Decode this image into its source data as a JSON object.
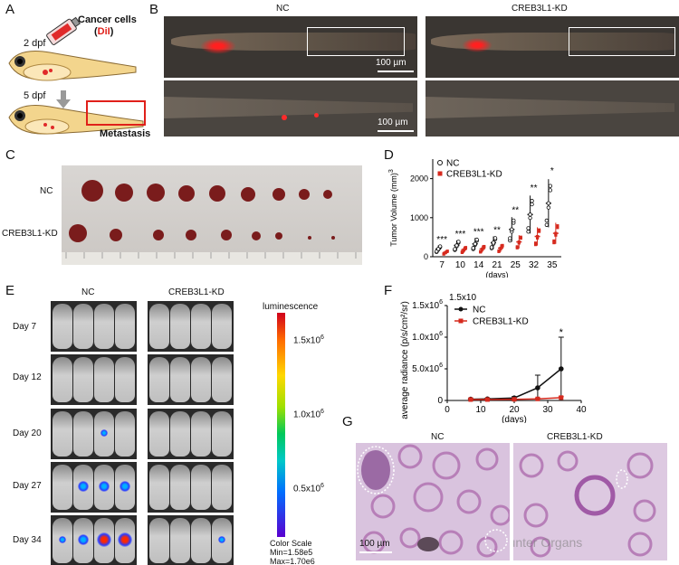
{
  "panels": {
    "A": "A",
    "B": "B",
    "C": "C",
    "D": "D",
    "E": "E",
    "F": "F",
    "G": "G"
  },
  "panel_a": {
    "cancer_cells": "Cancer cells",
    "dil_open": "(",
    "dil": "DiI",
    "dil_close": ")",
    "dpf2": "2 dpf",
    "dpf5": "5 dpf",
    "metastasis": "Metastasis"
  },
  "panel_b": {
    "nc": "NC",
    "kd": "CREB3L1-KD",
    "scale1": "100 µm",
    "scale2": "100 µm"
  },
  "panel_c": {
    "nc": "NC",
    "kd": "CREB3L1-KD"
  },
  "panel_e": {
    "nc": "NC",
    "kd": "CREB3L1-KD",
    "days": [
      "Day 7",
      "Day 12",
      "Day 20",
      "Day 27",
      "Day 34"
    ],
    "colorbar_title": "luminescence",
    "ticks": [
      "1.5x10",
      "1.0x10",
      "0.5x10"
    ],
    "tick_exp": "6",
    "scale_label": "Color Scale",
    "min_label": "Min=1.58e5",
    "max_label": "Max=1.70e6"
  },
  "panel_g": {
    "nc": "NC",
    "kd": "CREB3L1-KD",
    "scale": "100 µm",
    "watermark": "公众号 · Hunter Organs"
  },
  "colors": {
    "nc": "#111111",
    "kd": "#d62a1e",
    "dil": "#e0201a"
  },
  "chart_data": [
    {
      "panel": "D",
      "type": "scatter",
      "ylabel": "Tumor Volume (mm)",
      "ylabel_sup": "3",
      "xlabel": "(days)",
      "categories": [
        "7",
        "10",
        "14",
        "21",
        "25",
        "32",
        "35"
      ],
      "ylim": [
        0,
        2500
      ],
      "yticks": [
        0,
        1000,
        2000
      ],
      "series": [
        {
          "name": "NC",
          "color": "#111111",
          "marker": "open-circle",
          "values": [
            200,
            290,
            330,
            360,
            700,
            1080,
            1370
          ]
        },
        {
          "name": "CREB3L1-KD",
          "color": "#d62a1e",
          "marker": "square",
          "values": [
            110,
            180,
            200,
            220,
            380,
            520,
            600
          ]
        }
      ],
      "annotations": [
        "***",
        "***",
        "***",
        "**",
        "**",
        "**",
        "*"
      ],
      "legend": "top-left"
    },
    {
      "panel": "F",
      "type": "line",
      "ylabel": "average radiance (p/s/cm²/sr)",
      "xlabel": "(days)",
      "x": [
        7,
        12,
        20,
        27,
        34
      ],
      "xlim": [
        0,
        40
      ],
      "xticks": [
        0,
        10,
        20,
        30,
        40
      ],
      "ylim": [
        0,
        1500000
      ],
      "yticks": [
        0,
        500000,
        1000000,
        1500000
      ],
      "ytick_labels": [
        "0",
        "5.0x10",
        "1.0x10",
        "1.5x10"
      ],
      "ytick_exp": "6",
      "series": [
        {
          "name": "NC",
          "color": "#111111",
          "values": [
            20000,
            25000,
            40000,
            200000,
            500000
          ],
          "err": [
            10000,
            10000,
            20000,
            200000,
            500000
          ]
        },
        {
          "name": "CREB3L1-KD",
          "color": "#d62a1e",
          "values": [
            15000,
            15000,
            18000,
            25000,
            45000
          ],
          "err": [
            5000,
            5000,
            5000,
            10000,
            15000
          ]
        }
      ],
      "annotations": [
        "",
        "",
        "",
        "",
        "*"
      ],
      "legend": "top-left"
    }
  ]
}
